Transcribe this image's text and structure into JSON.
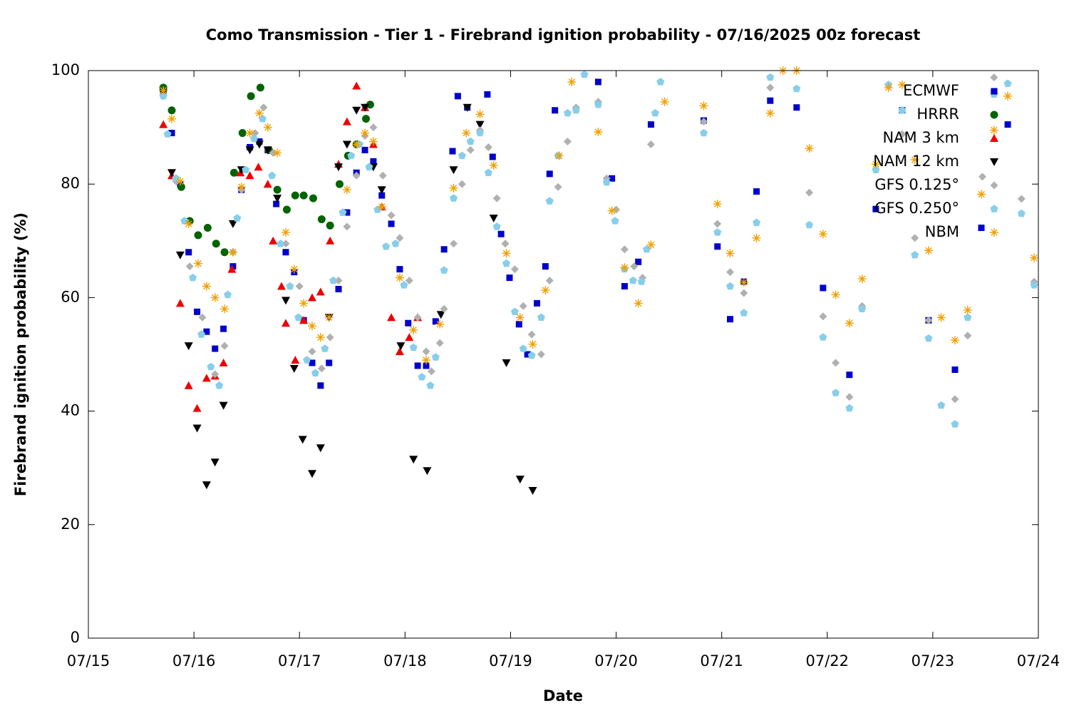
{
  "chart_data": {
    "type": "scatter",
    "title": "Como Transmission - Tier 1 - Firebrand ignition probability - 07/16/2025 00z forecast",
    "xlabel": "Date",
    "ylabel": "Firebrand ignition probability (%)",
    "xlim": [
      0,
      9
    ],
    "xticks": [
      {
        "value": 0,
        "label": "07/15"
      },
      {
        "value": 1,
        "label": "07/16"
      },
      {
        "value": 2,
        "label": "07/17"
      },
      {
        "value": 3,
        "label": "07/18"
      },
      {
        "value": 4,
        "label": "07/19"
      },
      {
        "value": 5,
        "label": "07/20"
      },
      {
        "value": 6,
        "label": "07/21"
      },
      {
        "value": 7,
        "label": "07/22"
      },
      {
        "value": 8,
        "label": "07/23"
      },
      {
        "value": 9,
        "label": "07/24"
      }
    ],
    "ylim": [
      0,
      100
    ],
    "yticks": [
      0,
      20,
      40,
      60,
      80,
      100
    ],
    "grid": false,
    "legend": "upper right",
    "series": [
      {
        "name": "ECMWF",
        "color": "#0000cc",
        "marker": "square",
        "x": [
          0.71,
          0.79,
          0.87,
          0.95,
          1.03,
          1.12,
          1.2,
          1.28,
          1.37,
          1.45,
          1.53,
          1.62,
          1.7,
          1.78,
          1.87,
          1.95,
          2.04,
          2.12,
          2.2,
          2.28,
          2.37,
          2.45,
          2.54,
          2.62,
          2.7,
          2.78,
          2.87,
          2.95,
          3.03,
          3.12,
          3.2,
          3.29,
          3.37,
          3.45,
          3.5,
          3.59,
          3.78,
          3.83,
          3.91,
          3.99,
          4.08,
          4.16,
          4.25,
          4.33,
          4.37,
          4.42,
          4.83,
          4.96,
          5.08,
          5.21,
          5.33,
          5.83,
          5.96,
          6.08,
          6.21,
          6.33,
          6.46,
          6.71,
          6.96,
          7.21,
          7.46,
          7.71,
          7.96,
          8.21,
          8.46,
          8.58,
          8.71
        ],
        "values": [
          96,
          89,
          80,
          68,
          57.5,
          54,
          51,
          54.5,
          65.5,
          79,
          86.5,
          87.5,
          86,
          76.5,
          68,
          64.5,
          56,
          48.5,
          44.5,
          48.5,
          61.5,
          75,
          82,
          86,
          84,
          78,
          73,
          65,
          55.5,
          48,
          48,
          55.8,
          68.5,
          85.8,
          95.5,
          93.5,
          95.8,
          84.8,
          71.2,
          63.5,
          55.3,
          50,
          59,
          65.5,
          81.8,
          93,
          98,
          81,
          62,
          66.3,
          90.5,
          91.2,
          69,
          56.2,
          62.8,
          78.7,
          94.7,
          93.5,
          61.7,
          46.4,
          75.6,
          93,
          56,
          47.3,
          72.3,
          96.2,
          90.5
        ]
      },
      {
        "name": "HRRR",
        "color": "#006400",
        "marker": "circle",
        "x": [
          0.71,
          0.79,
          0.88,
          0.96,
          1.04,
          1.13,
          1.21,
          1.29,
          1.38,
          1.46,
          1.54,
          1.63,
          1.71,
          1.79,
          1.88,
          1.96,
          2.04,
          2.13,
          2.21,
          2.29,
          2.38,
          2.46,
          2.54,
          2.63,
          2.67
        ],
        "values": [
          97,
          93,
          79.5,
          73.5,
          71,
          72.3,
          69.5,
          68,
          82,
          89,
          95.5,
          97,
          86,
          79,
          75.5,
          78,
          78,
          77.5,
          73.8,
          72.7,
          80,
          85,
          87,
          91.5,
          94
        ]
      },
      {
        "name": "NAM 3 km",
        "color": "#ee0000",
        "marker": "triangle",
        "x": [
          0.71,
          0.79,
          0.87,
          0.95,
          1.03,
          1.12,
          1.2,
          1.28,
          1.36,
          1.44,
          1.53,
          1.61,
          1.7,
          1.75,
          1.83,
          1.87,
          1.96,
          2.04,
          2.12,
          2.2,
          2.29,
          2.37,
          2.45,
          2.54,
          2.62,
          2.7,
          2.78,
          2.87,
          2.95,
          3.04,
          3.12
        ],
        "values": [
          90.5,
          81.5,
          59,
          44.5,
          40.5,
          45.8,
          46.2,
          48.5,
          65,
          82,
          81.5,
          83,
          80,
          70,
          62,
          55.5,
          49,
          56,
          60,
          61,
          70,
          83.5,
          91,
          97.3,
          93.5,
          87,
          76,
          56.5,
          50.5,
          53,
          56.5
        ]
      },
      {
        "name": "NAM 12 km",
        "color": "#000000",
        "marker": "triangle-down",
        "x": [
          0.71,
          0.79,
          0.87,
          0.95,
          1.03,
          1.12,
          1.2,
          1.28,
          1.37,
          1.45,
          1.53,
          1.62,
          1.7,
          1.79,
          1.87,
          1.95,
          2.03,
          2.12,
          2.2,
          2.28,
          2.37,
          2.45,
          2.54,
          2.62,
          2.7,
          2.78,
          2.96,
          3.08,
          3.21,
          3.34,
          3.46,
          3.59,
          3.71,
          3.84,
          3.96,
          4.09,
          4.21
        ],
        "values": [
          96,
          82,
          67.5,
          51.5,
          37,
          27,
          31,
          41,
          73,
          82.5,
          86,
          87,
          86,
          77.5,
          59.5,
          47.5,
          35,
          29,
          33.5,
          56.5,
          83,
          87,
          93,
          93.5,
          83,
          79,
          51.5,
          31.5,
          29.5,
          57,
          82.5,
          93.5,
          90.5,
          74,
          48.5,
          28,
          26
        ]
      },
      {
        "name": "GFS 0.125°",
        "color": "#b0b0b0",
        "marker": "diamond",
        "x": [
          0.71,
          0.83,
          0.96,
          1.08,
          1.2,
          1.29,
          1.37,
          1.45,
          1.58,
          1.66,
          1.75,
          1.87,
          2.0,
          2.12,
          2.21,
          2.29,
          2.37,
          2.45,
          2.54,
          2.62,
          2.7,
          2.79,
          2.87,
          2.95,
          3.04,
          3.12,
          3.2,
          3.25,
          3.33,
          3.37,
          3.46,
          3.54,
          3.62,
          3.71,
          3.79,
          3.87,
          3.95,
          4.04,
          4.12,
          4.2,
          4.29,
          4.37,
          4.45,
          4.54,
          4.62,
          4.83,
          4.91,
          5.0,
          5.08,
          5.17,
          5.25,
          5.33,
          5.83,
          5.96,
          6.08,
          6.21,
          6.46,
          6.83,
          6.96,
          7.08,
          7.21,
          7.33,
          7.71,
          7.83,
          7.96,
          8.21,
          8.33,
          8.47,
          8.58,
          8.84,
          8.96
        ],
        "values": [
          95.5,
          80.5,
          65.5,
          56.5,
          46.5,
          51.5,
          68,
          79,
          89,
          93.5,
          85.5,
          69.5,
          62,
          50.5,
          47.5,
          53,
          63,
          72.5,
          81.5,
          88.5,
          90,
          81.5,
          74.5,
          70.5,
          63,
          56.5,
          50.5,
          47,
          52,
          58,
          69.5,
          80,
          86,
          89.5,
          86.5,
          77.5,
          69.5,
          65,
          58.5,
          53.5,
          50,
          63,
          79.5,
          87.5,
          93.5,
          94.5,
          81,
          75.5,
          68.5,
          65.5,
          63.5,
          87,
          91,
          73,
          64.5,
          60.8,
          97,
          78.5,
          56.7,
          48.5,
          42.5,
          58.5,
          88.8,
          70.5,
          56,
          42.1,
          53.3,
          81.3,
          98.8,
          77.4,
          62.8
        ]
      },
      {
        "name": "GFS 0.250°",
        "color": "#87ceeb",
        "marker": "pentagon",
        "x": [
          0.71,
          0.75,
          0.83,
          0.91,
          0.99,
          1.07,
          1.16,
          1.24,
          1.32,
          1.41,
          1.49,
          1.57,
          1.65,
          1.74,
          1.82,
          1.91,
          1.99,
          2.07,
          2.15,
          2.24,
          2.32,
          2.41,
          2.49,
          2.57,
          2.66,
          2.74,
          2.82,
          2.91,
          2.99,
          3.08,
          3.16,
          3.24,
          3.29,
          3.37,
          3.46,
          3.54,
          3.62,
          3.71,
          3.79,
          3.87,
          3.96,
          4.04,
          4.12,
          4.2,
          4.29,
          4.37,
          4.45,
          4.54,
          4.62,
          4.7,
          4.83,
          4.91,
          4.99,
          5.08,
          5.16,
          5.24,
          5.29,
          5.37,
          5.42,
          5.83,
          5.96,
          6.08,
          6.21,
          6.33,
          6.46,
          6.71,
          6.83,
          6.96,
          7.08,
          7.21,
          7.33,
          7.46,
          7.58,
          7.71,
          7.83,
          7.96,
          8.08,
          8.21,
          8.33,
          8.58,
          8.71,
          8.84,
          8.96
        ],
        "values": [
          95.5,
          88.8,
          81,
          73.5,
          63.5,
          53.5,
          47.8,
          44.5,
          60.5,
          74,
          82.5,
          88,
          91.5,
          81.5,
          69.5,
          62,
          56.5,
          49,
          46.7,
          51,
          63,
          75,
          85,
          87,
          83,
          75.5,
          69,
          69.5,
          62.2,
          51.2,
          46,
          44.5,
          49.5,
          64.8,
          77.5,
          85,
          87.5,
          89,
          82,
          72.5,
          66,
          57.5,
          51,
          49.8,
          56.5,
          77,
          85,
          92.5,
          93,
          99.3,
          94,
          80.3,
          73.5,
          65,
          63,
          62.8,
          68.5,
          92.5,
          98,
          89,
          71.5,
          62,
          57.3,
          73.2,
          98.8,
          96.8,
          72.8,
          53,
          43.2,
          40.5,
          58,
          82.5,
          97.5,
          93,
          67.5,
          52.8,
          41,
          37.7,
          56.5,
          95.8,
          97.7,
          74.8,
          62.2
        ]
      },
      {
        "name": "NBM",
        "color": "#f0a000",
        "marker": "star",
        "x": [
          0.71,
          0.79,
          0.87,
          0.95,
          1.04,
          1.12,
          1.2,
          1.29,
          1.37,
          1.45,
          1.53,
          1.62,
          1.7,
          1.79,
          1.87,
          1.95,
          2.04,
          2.12,
          2.2,
          2.28,
          2.45,
          2.54,
          2.62,
          2.7,
          2.78,
          2.95,
          3.08,
          3.2,
          3.33,
          3.46,
          3.58,
          3.71,
          3.84,
          3.96,
          4.09,
          4.21,
          4.33,
          4.46,
          4.58,
          4.83,
          4.96,
          5.08,
          5.21,
          5.33,
          5.46,
          5.83,
          5.96,
          6.08,
          6.21,
          6.33,
          6.46,
          6.58,
          6.71,
          6.83,
          6.96,
          7.08,
          7.21,
          7.33,
          7.46,
          7.58,
          7.71,
          7.83,
          7.96,
          8.08,
          8.21,
          8.33,
          8.46,
          8.58,
          8.71,
          8.96
        ],
        "values": [
          96.5,
          91.5,
          80.5,
          73,
          66,
          62,
          60,
          58,
          68,
          79.5,
          89,
          92.5,
          90,
          85.5,
          71.5,
          65,
          59,
          55,
          53,
          56.5,
          79,
          87,
          89,
          87.5,
          76,
          63.5,
          54.3,
          49,
          55.3,
          79.3,
          89,
          92.3,
          83.3,
          67.8,
          56.5,
          51.8,
          61.3,
          85,
          98,
          89.2,
          75.3,
          65.3,
          59,
          69.3,
          94.5,
          93.8,
          76.5,
          67.8,
          62.7,
          70.5,
          92.5,
          100,
          100,
          86.3,
          71.2,
          60.5,
          55.5,
          63.3,
          83.5,
          97,
          97.5,
          84.3,
          68.3,
          56.5,
          52.5,
          57.8,
          78.2,
          89.5,
          95.5,
          67
        ]
      }
    ]
  }
}
